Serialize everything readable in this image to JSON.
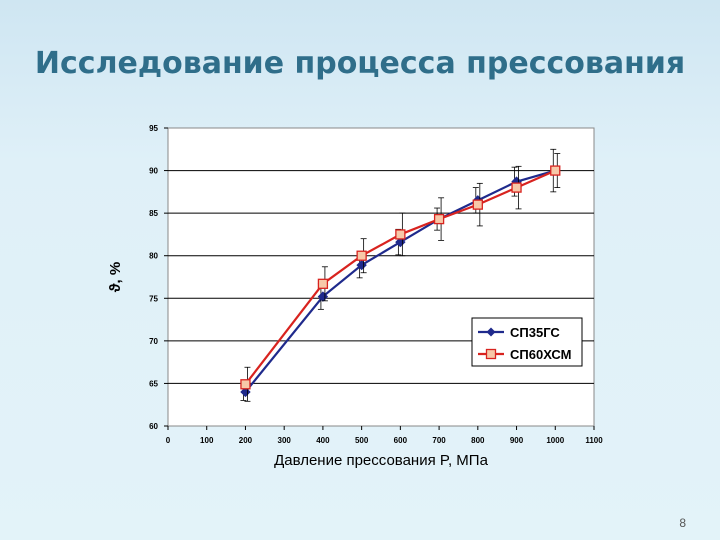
{
  "slide": {
    "title": "Исследование процесса прессования",
    "page_number": "8"
  },
  "chart_data": {
    "type": "line",
    "title": "",
    "xlabel": "Давление прессования P, МПа",
    "ylabel": "ϑ, %",
    "xlim": [
      0,
      1100
    ],
    "ylim": [
      60,
      95
    ],
    "xticks": [
      0,
      100,
      200,
      300,
      400,
      500,
      600,
      700,
      800,
      900,
      1000,
      1100
    ],
    "yticks": [
      60,
      65,
      70,
      75,
      80,
      85,
      90,
      95
    ],
    "grid": "horizontal",
    "legend_position": "lower-right",
    "series": [
      {
        "name": "СП35ГС",
        "color": "#1f2a8c",
        "marker": "diamond",
        "x": [
          200,
          400,
          500,
          600,
          700,
          800,
          900,
          1000
        ],
        "y": [
          64,
          75.2,
          78.9,
          81.6,
          84.3,
          86.5,
          88.7,
          90
        ],
        "err": [
          1.0,
          1.5,
          1.5,
          1.5,
          1.3,
          1.5,
          1.7,
          2.5
        ]
      },
      {
        "name": "СП60ХСМ",
        "color": "#d8231f",
        "marker": "square",
        "x": [
          200,
          400,
          500,
          600,
          700,
          800,
          900,
          1000
        ],
        "y": [
          64.9,
          76.7,
          80,
          82.5,
          84.3,
          86,
          88,
          90
        ],
        "err": [
          2.0,
          2.0,
          2.0,
          2.5,
          2.5,
          2.5,
          2.5,
          2.0
        ]
      }
    ]
  }
}
